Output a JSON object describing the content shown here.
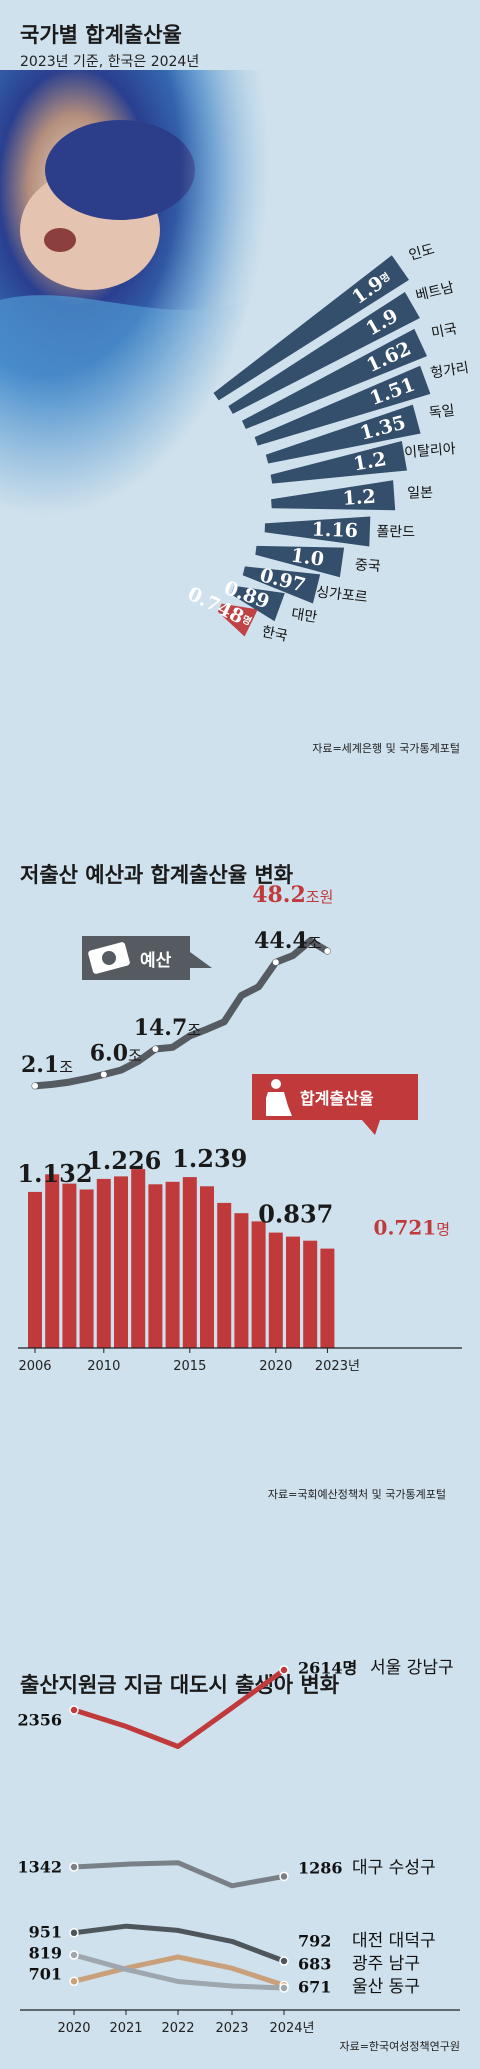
{
  "colors": {
    "background": "#cfe1ec",
    "navy_bar": "#2b4765",
    "korea_bar": "#c0393b",
    "budget_line": "#555b60",
    "tfr_bar": "#c0393b",
    "dark_text": "#1a1a1a",
    "red_text": "#c0393b"
  },
  "chart1": {
    "title": "국가별 합계출산율",
    "subtitle": "2023년 기준, 한국은 2024년",
    "source": "자료=세계은행 및 국가통계포털",
    "chart_data": {
      "type": "bar",
      "title": "국가별 합계출산율",
      "subtitle": "2023년 기준, 한국은 2024년",
      "unit": "명",
      "categories": [
        "인도",
        "베트남",
        "미국",
        "헝가리",
        "독일",
        "이탈리아",
        "일본",
        "폴란드",
        "중국",
        "싱가포르",
        "대만",
        "한국"
      ],
      "values": [
        1.9,
        1.9,
        1.62,
        1.51,
        1.35,
        1.2,
        1.2,
        1.16,
        1.0,
        0.97,
        0.89,
        0.748
      ],
      "value_labels": [
        "1.9",
        "1.9",
        "1.62",
        "1.51",
        "1.35",
        "1.2",
        "1.2",
        "1.16",
        "1.0",
        "0.97",
        "0.89",
        "0.748"
      ],
      "highlight": "한국",
      "photo_icon": "newborn-photo"
    }
  },
  "chart2": {
    "title": "저출산 예산과 합계출산율 변화",
    "source": "자료=국회예산정책처 및 국가통계포털",
    "budget_badge": "예산",
    "budget_icon": "banknote-icon",
    "tfr_badge": "합계출산율",
    "tfr_icon": "pregnant-woman-icon",
    "chart_data": {
      "type": "line+bar",
      "x": [
        2006,
        2007,
        2008,
        2009,
        2010,
        2011,
        2012,
        2013,
        2014,
        2015,
        2016,
        2017,
        2018,
        2019,
        2020,
        2021,
        2022,
        2023
      ],
      "x_ticks": [
        "2006",
        "2010",
        "2015",
        "2020",
        "2023년"
      ],
      "budget": {
        "name": "예산",
        "unit": "조원",
        "values": [
          2.1,
          2.6,
          3.4,
          4.6,
          6.0,
          7.5,
          10.5,
          14.7,
          15.3,
          19.2,
          21.5,
          24.0,
          33.0,
          36.0,
          44.4,
          46.7,
          51.7,
          48.2
        ],
        "labels": [
          {
            "year": 2006,
            "value": "2.1",
            "unit": "조"
          },
          {
            "year": 2010,
            "value": "6.0",
            "unit": "조"
          },
          {
            "year": 2013,
            "value": "14.7",
            "unit": "조"
          },
          {
            "year": 2020,
            "value": "44.4",
            "unit": "조"
          },
          {
            "year": 2023,
            "value": "48.2",
            "unit": "조원"
          }
        ]
      },
      "tfr": {
        "name": "합계출산율",
        "unit": "명",
        "values": [
          1.132,
          1.259,
          1.192,
          1.149,
          1.226,
          1.244,
          1.297,
          1.187,
          1.205,
          1.239,
          1.172,
          1.052,
          0.977,
          0.918,
          0.837,
          0.808,
          0.778,
          0.721
        ],
        "labels": [
          {
            "year": 2006,
            "value": "1.132"
          },
          {
            "year": 2010,
            "value": "1.226"
          },
          {
            "year": 2015,
            "value": "1.239"
          },
          {
            "year": 2020,
            "value": "0.837"
          },
          {
            "year": 2023,
            "value": "0.721",
            "unit": "명"
          }
        ]
      }
    }
  },
  "chart3": {
    "title": "출산지원금 지급 대도시 출생아 변화",
    "source": "자료=한국여성정책연구원",
    "chart_data": {
      "type": "line",
      "x": [
        "2020",
        "2021",
        "2022",
        "2023",
        "2024년"
      ],
      "unit": "명",
      "series": [
        {
          "name": "서울 강남구",
          "values": [
            2356,
            2250,
            2120,
            2370,
            2614
          ],
          "start_label": "2356",
          "end_label": "2614명",
          "color": "#c0393b"
        },
        {
          "name": "대구 수성구",
          "values": [
            1342,
            1360,
            1370,
            1230,
            1286
          ],
          "start_label": "1342",
          "end_label": "1286",
          "color": "#7a8087"
        },
        {
          "name": "대전 대덕구",
          "values": [
            951,
            990,
            965,
            900,
            792
          ],
          "start_label": "951",
          "end_label": "792",
          "color": "#4e555b"
        },
        {
          "name": "광주 남구",
          "values": [
            701,
            760,
            810,
            760,
            683
          ],
          "start_label": "701",
          "end_label": "683",
          "color": "#c9a07a"
        },
        {
          "name": "울산 동구",
          "values": [
            819,
            755,
            700,
            680,
            671
          ],
          "start_label": "819",
          "end_label": "671",
          "color": "#9ea7ae"
        }
      ]
    }
  }
}
